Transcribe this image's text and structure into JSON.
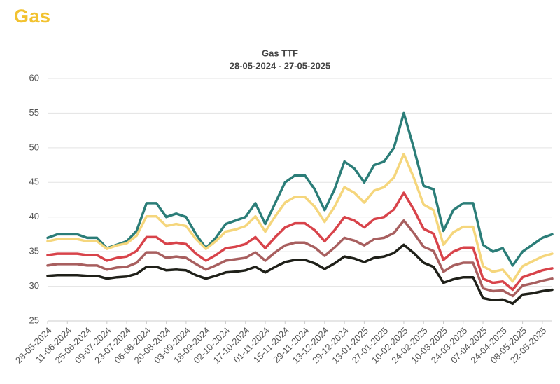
{
  "header": {
    "title": "Gas"
  },
  "chart_data": {
    "type": "line",
    "title": "Gas TTF",
    "subtitle": "28-05-2024 - 27-05-2025",
    "categories": [
      "28-05-2024",
      null,
      "11-06-2024",
      null,
      "25-06-2024",
      null,
      "09-07-2024",
      null,
      "23-07-2024",
      null,
      "06-08-2024",
      null,
      "20-08-2024",
      null,
      "03-09-2024",
      null,
      "18-09-2024",
      null,
      "02-10-2024",
      null,
      "17-10-2024",
      null,
      "01-11-2024",
      null,
      "15-11-2024",
      null,
      "29-11-2024",
      null,
      "13-12-2024",
      null,
      "29-12-2024",
      null,
      "13-01-2025",
      null,
      "27-01-2025",
      null,
      "10-02-2025",
      null,
      "24-02-2025",
      null,
      "10-03-2025",
      null,
      "24-03-2025",
      null,
      "07-04-2025",
      null,
      "24-04-2025",
      null,
      "08-05-2025",
      null,
      "22-05-2025",
      null
    ],
    "ylim": [
      25,
      60
    ],
    "yticks": [
      25,
      30,
      35,
      40,
      45,
      50,
      55,
      60
    ],
    "grid": true,
    "series": [
      {
        "color": "#2b7d78",
        "values": [
          37,
          37.5,
          37.5,
          37.5,
          37,
          37,
          35.5,
          36,
          36.5,
          38,
          42,
          42,
          40,
          40.5,
          40,
          37.5,
          35.5,
          37,
          39,
          39.5,
          40,
          42,
          39,
          42,
          45,
          46,
          46,
          44,
          41,
          44,
          48,
          47,
          45,
          47.5,
          48,
          50,
          55,
          50,
          44.5,
          44,
          38,
          41,
          42,
          42,
          36,
          35,
          35.5,
          33,
          35,
          36,
          37,
          37.5
        ]
      },
      {
        "color": "#f5d67c",
        "values": [
          36.5,
          36.8,
          36.8,
          36.8,
          36.5,
          36.5,
          35.4,
          35.9,
          36.2,
          37.3,
          40.1,
          40.1,
          38.7,
          39,
          38.7,
          36.8,
          35.4,
          36.5,
          37.9,
          38.2,
          38.7,
          40.1,
          37.9,
          40.1,
          42.1,
          42.9,
          42.9,
          41.5,
          39.3,
          41.5,
          44.3,
          43.5,
          42.1,
          43.8,
          44.3,
          45.7,
          49.1,
          45.7,
          41.8,
          41,
          36,
          37.8,
          38.6,
          38.6,
          32.9,
          32.1,
          32.4,
          30.7,
          32.9,
          33.6,
          34.3,
          34.7
        ]
      },
      {
        "color": "#d8434a",
        "values": [
          34.5,
          34.7,
          34.7,
          34.7,
          34.5,
          34.5,
          33.7,
          34.1,
          34.3,
          35.1,
          37.1,
          37.1,
          36.1,
          36.3,
          36.1,
          34.7,
          33.7,
          34.5,
          35.5,
          35.7,
          36.1,
          37.1,
          35.5,
          37.1,
          38.5,
          39.1,
          39.1,
          38.1,
          36.5,
          38.1,
          40,
          39.5,
          38.5,
          39.7,
          40,
          41.1,
          43.5,
          41.1,
          38.3,
          37.6,
          33.8,
          35,
          35.6,
          35.6,
          31.1,
          30.5,
          30.7,
          29.5,
          31.3,
          31.8,
          32.3,
          32.6
        ]
      },
      {
        "color": "#a85f5f",
        "values": [
          33,
          33.2,
          33.2,
          33.2,
          33,
          33,
          32.4,
          32.7,
          32.8,
          33.4,
          34.9,
          34.9,
          34.1,
          34.3,
          34.1,
          33.2,
          32.4,
          33,
          33.7,
          33.9,
          34.1,
          34.9,
          33.7,
          34.9,
          35.9,
          36.3,
          36.3,
          35.6,
          34.4,
          35.6,
          37,
          36.6,
          35.9,
          36.8,
          37,
          37.7,
          39.5,
          37.7,
          35.7,
          35.1,
          32.1,
          33,
          33.4,
          33.4,
          29.7,
          29.3,
          29.4,
          28.6,
          30.1,
          30.4,
          30.8,
          31.1
        ]
      },
      {
        "color": "#1f2019",
        "values": [
          31.5,
          31.6,
          31.6,
          31.6,
          31.5,
          31.5,
          31.1,
          31.3,
          31.4,
          31.8,
          32.8,
          32.8,
          32.3,
          32.4,
          32.3,
          31.6,
          31.1,
          31.5,
          32,
          32.1,
          32.3,
          32.8,
          32,
          32.8,
          33.5,
          33.8,
          33.8,
          33.3,
          32.5,
          33.3,
          34.3,
          34,
          33.5,
          34.1,
          34.3,
          34.8,
          36,
          34.8,
          33.4,
          32.8,
          30.5,
          31,
          31.3,
          31.3,
          28.3,
          28,
          28.1,
          27.5,
          28.8,
          29,
          29.3,
          29.5
        ]
      }
    ]
  }
}
